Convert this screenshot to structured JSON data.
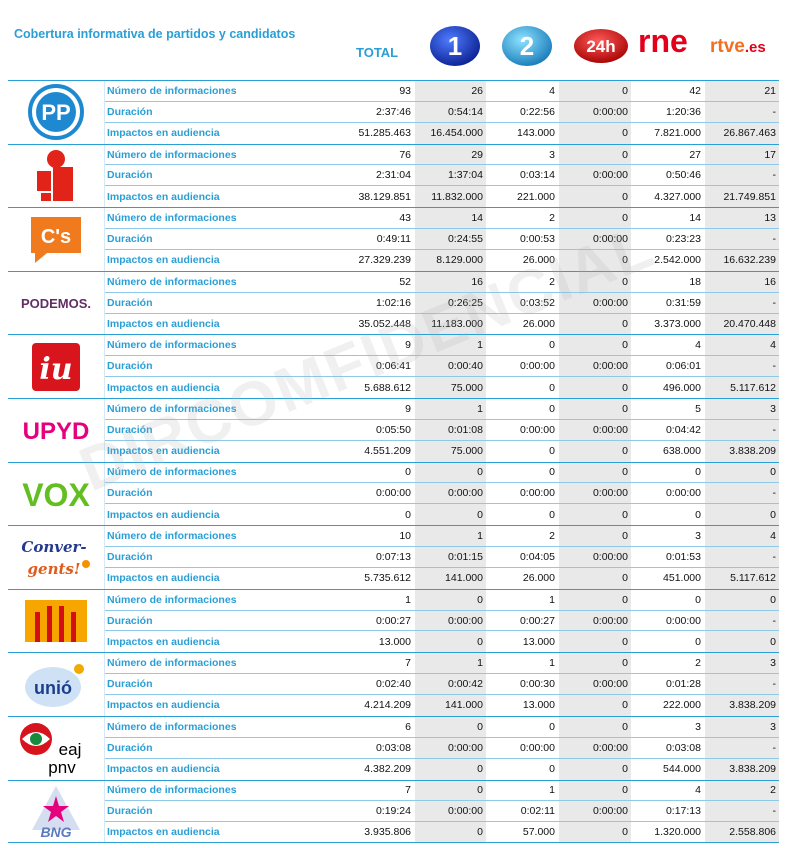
{
  "header": {
    "title": "Cobertura informativa de partidos y candidatos",
    "total_label": "TOTAL",
    "channels": [
      {
        "name": "la1-logo",
        "text": "1"
      },
      {
        "name": "la2-logo",
        "text": "2"
      },
      {
        "name": "24h-logo",
        "text": "24h"
      },
      {
        "name": "rne-logo",
        "text": "rne"
      },
      {
        "name": "rtve-logo",
        "text": "rtve",
        "suffix": ".es"
      }
    ]
  },
  "metrics": [
    "Número de informaciones",
    "Duración",
    "Impactos en audiencia"
  ],
  "parties": [
    {
      "id": "pp",
      "logo_text": "PP",
      "color": "#1e88d1",
      "rows": [
        [
          "93",
          "26",
          "4",
          "0",
          "42",
          "21"
        ],
        [
          "2:37:46",
          "0:54:14",
          "0:22:56",
          "0:00:00",
          "1:20:36",
          "-"
        ],
        [
          "51.285.463",
          "16.454.000",
          "143.000",
          "0",
          "7.821.000",
          "26.867.463"
        ]
      ]
    },
    {
      "id": "psoe",
      "logo_text": "",
      "color": "#e2231a",
      "rows": [
        [
          "76",
          "29",
          "3",
          "0",
          "27",
          "17"
        ],
        [
          "2:31:04",
          "1:37:04",
          "0:03:14",
          "0:00:00",
          "0:50:46",
          "-"
        ],
        [
          "38.129.851",
          "11.832.000",
          "221.000",
          "0",
          "4.327.000",
          "21.749.851"
        ]
      ]
    },
    {
      "id": "cs",
      "logo_text": "C's",
      "color": "#f07a1e",
      "rows": [
        [
          "43",
          "14",
          "2",
          "0",
          "14",
          "13"
        ],
        [
          "0:49:11",
          "0:24:55",
          "0:00:53",
          "0:00:00",
          "0:23:23",
          "-"
        ],
        [
          "27.329.239",
          "8.129.000",
          "26.000",
          "0",
          "2.542.000",
          "16.632.239"
        ]
      ]
    },
    {
      "id": "podemos",
      "logo_text": "PODEMOS.",
      "color": "#612d62",
      "rows": [
        [
          "52",
          "16",
          "2",
          "0",
          "18",
          "16"
        ],
        [
          "1:02:16",
          "0:26:25",
          "0:03:52",
          "0:00:00",
          "0:31:59",
          "-"
        ],
        [
          "35.052.448",
          "11.183.000",
          "26.000",
          "0",
          "3.373.000",
          "20.470.448"
        ]
      ]
    },
    {
      "id": "iu",
      "logo_text": "iu",
      "color": "#d8141c",
      "rows": [
        [
          "9",
          "1",
          "0",
          "0",
          "4",
          "4"
        ],
        [
          "0:06:41",
          "0:00:40",
          "0:00:00",
          "0:00:00",
          "0:06:01",
          "-"
        ],
        [
          "5.688.612",
          "75.000",
          "0",
          "0",
          "496.000",
          "5.117.612"
        ]
      ]
    },
    {
      "id": "upyd",
      "logo_text": "UPYD",
      "color": "#e5007d",
      "rows": [
        [
          "9",
          "1",
          "0",
          "0",
          "5",
          "3"
        ],
        [
          "0:05:50",
          "0:01:08",
          "0:00:00",
          "0:00:00",
          "0:04:42",
          "-"
        ],
        [
          "4.551.209",
          "75.000",
          "0",
          "0",
          "638.000",
          "3.838.209"
        ]
      ]
    },
    {
      "id": "vox",
      "logo_text": "VOX",
      "color": "#63be21",
      "rows": [
        [
          "0",
          "0",
          "0",
          "0",
          "0",
          "0"
        ],
        [
          "0:00:00",
          "0:00:00",
          "0:00:00",
          "0:00:00",
          "0:00:00",
          "-"
        ],
        [
          "0",
          "0",
          "0",
          "0",
          "0",
          "0"
        ]
      ]
    },
    {
      "id": "convergents",
      "logo_text": "Conver-gents!",
      "color": "#243a8f",
      "rows": [
        [
          "10",
          "1",
          "2",
          "0",
          "3",
          "4"
        ],
        [
          "0:07:13",
          "0:01:15",
          "0:04:05",
          "0:00:00",
          "0:01:53",
          "-"
        ],
        [
          "5.735.612",
          "141.000",
          "26.000",
          "0",
          "451.000",
          "5.117.612"
        ]
      ]
    },
    {
      "id": "erc",
      "logo_text": "",
      "color": "#f7a600",
      "rows": [
        [
          "1",
          "0",
          "1",
          "0",
          "0",
          "0"
        ],
        [
          "0:00:27",
          "0:00:00",
          "0:00:27",
          "0:00:00",
          "0:00:00",
          "-"
        ],
        [
          "13.000",
          "0",
          "13.000",
          "0",
          "0",
          "0"
        ]
      ]
    },
    {
      "id": "unio",
      "logo_text": "unió",
      "color": "#1b3f8b",
      "rows": [
        [
          "7",
          "1",
          "1",
          "0",
          "2",
          "3"
        ],
        [
          "0:02:40",
          "0:00:42",
          "0:00:30",
          "0:00:00",
          "0:01:28",
          "-"
        ],
        [
          "4.214.209",
          "141.000",
          "13.000",
          "0",
          "222.000",
          "3.838.209"
        ]
      ]
    },
    {
      "id": "pnv",
      "logo_text": "eaj pnv",
      "color": "#d7141e",
      "rows": [
        [
          "6",
          "0",
          "0",
          "0",
          "3",
          "3"
        ],
        [
          "0:03:08",
          "0:00:00",
          "0:00:00",
          "0:00:00",
          "0:03:08",
          "-"
        ],
        [
          "4.382.209",
          "0",
          "0",
          "0",
          "544.000",
          "3.838.209"
        ]
      ]
    },
    {
      "id": "bng",
      "logo_text": "BNG",
      "color": "#5a7bbf",
      "rows": [
        [
          "7",
          "0",
          "1",
          "0",
          "4",
          "2"
        ],
        [
          "0:19:24",
          "0:00:00",
          "0:02:11",
          "0:00:00",
          "0:17:13",
          "-"
        ],
        [
          "3.935.806",
          "0",
          "57.000",
          "0",
          "1.320.000",
          "2.558.806"
        ]
      ]
    }
  ],
  "watermark": "DIRCOMFIDENCIAL"
}
